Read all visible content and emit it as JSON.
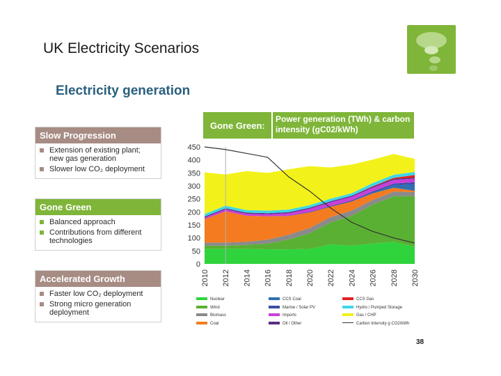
{
  "slide": {
    "title": "UK Electricity Scenarios",
    "subtitle": "Electricity generation",
    "page_number": "38"
  },
  "scenarios": [
    {
      "title": "Slow Progression",
      "color": "#a78c83",
      "bullets": [
        "Extension of existing plant; new gas generation",
        "Slower low CO₂ deployment"
      ]
    },
    {
      "title": "Gone Green",
      "color": "#7fb539",
      "bullets": [
        "Balanced approach",
        "Contributions from different technologies"
      ]
    },
    {
      "title": "Accelerated Growth",
      "color": "#a78c83",
      "bullets": [
        "Faster low CO₂ deployment",
        "Strong micro generation deployment"
      ]
    }
  ],
  "chart_header": {
    "scenario": "Gone Green:",
    "description": "Power generation (TWh) & carbon intensity (gC02/kWh)"
  },
  "chart_data": {
    "type": "area",
    "x": [
      2010,
      2012,
      2014,
      2016,
      2018,
      2020,
      2022,
      2024,
      2026,
      2028,
      2030
    ],
    "x_ticks": [
      "2010",
      "2012",
      "2014",
      "2016",
      "2018",
      "2020",
      "2022",
      "2024",
      "2026",
      "2028",
      "2030"
    ],
    "y_ticks": [
      "0",
      "50",
      "100",
      "150",
      "200",
      "250",
      "300",
      "350",
      "400",
      "450"
    ],
    "ylim": [
      0,
      450
    ],
    "stacked": true,
    "series": [
      {
        "name": "Nuclear",
        "color": "#2fd43c",
        "values": [
          58,
          58,
          58,
          56,
          56,
          58,
          75,
          70,
          78,
          85,
          65
        ]
      },
      {
        "name": "Wind",
        "color": "#5ab033",
        "values": [
          12,
          12,
          15,
          22,
          38,
          60,
          85,
          115,
          150,
          175,
          195
        ]
      },
      {
        "name": "Biomass",
        "color": "#8a8a8a",
        "values": [
          12,
          12,
          12,
          15,
          18,
          20,
          20,
          20,
          18,
          18,
          16
        ]
      },
      {
        "name": "Coal",
        "color": "#f47b20",
        "values": [
          90,
          120,
          100,
          90,
          72,
          60,
          40,
          35,
          25,
          15,
          5
        ]
      },
      {
        "name": "CCS Coal",
        "color": "#2f6fb2",
        "values": [
          0,
          0,
          0,
          0,
          0,
          0,
          0,
          0,
          3,
          10,
          25
        ]
      },
      {
        "name": "Marine / Solar PV",
        "color": "#3a4ea4",
        "values": [
          0,
          0,
          0,
          0,
          1,
          2,
          3,
          4,
          5,
          6,
          8
        ]
      },
      {
        "name": "Imports",
        "color": "#c840d8",
        "values": [
          6,
          8,
          8,
          8,
          10,
          12,
          14,
          14,
          14,
          14,
          14
        ]
      },
      {
        "name": "Oil / Other",
        "color": "#5a2d82",
        "values": [
          4,
          4,
          4,
          4,
          4,
          4,
          4,
          4,
          4,
          4,
          4
        ]
      },
      {
        "name": "CCS Gas",
        "color": "#e02222",
        "values": [
          0,
          0,
          0,
          0,
          0,
          0,
          0,
          0,
          2,
          4,
          10
        ]
      },
      {
        "name": "Hydro / Pumped Storage",
        "color": "#3ed6e6",
        "values": [
          10,
          10,
          10,
          10,
          10,
          10,
          10,
          10,
          12,
          12,
          12
        ]
      },
      {
        "name": "Gas / CHP",
        "color": "#f2f21a",
        "values": [
          160,
          120,
          150,
          145,
          155,
          150,
          120,
          110,
          90,
          80,
          50
        ]
      }
    ],
    "line_series": {
      "name": "Carbon Intensity g CO2/kWh",
      "color": "#333333",
      "values": [
        450,
        440,
        425,
        410,
        335,
        280,
        215,
        160,
        125,
        100,
        80
      ]
    }
  }
}
